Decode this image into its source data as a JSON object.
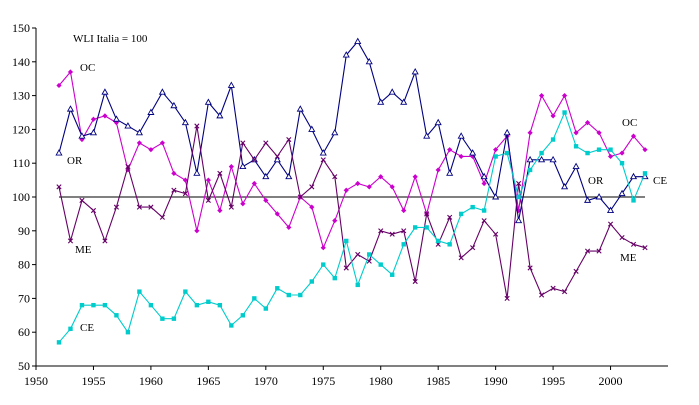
{
  "chart_data": {
    "type": "line",
    "title": "WLI Italia = 100",
    "xlabel": "",
    "ylabel": "",
    "xlim": [
      1950,
      2005
    ],
    "ylim": [
      50,
      150
    ],
    "x_ticks": [
      1950,
      1955,
      1960,
      1965,
      1970,
      1975,
      1980,
      1985,
      1990,
      1995,
      2000
    ],
    "y_ticks": [
      50,
      60,
      70,
      80,
      90,
      100,
      110,
      120,
      130,
      140,
      150
    ],
    "grid": false,
    "reference_line": 100,
    "x": [
      1952,
      1953,
      1954,
      1955,
      1956,
      1957,
      1958,
      1959,
      1960,
      1961,
      1962,
      1963,
      1964,
      1965,
      1966,
      1967,
      1968,
      1969,
      1970,
      1971,
      1972,
      1973,
      1974,
      1975,
      1976,
      1977,
      1978,
      1979,
      1980,
      1981,
      1982,
      1983,
      1984,
      1985,
      1986,
      1987,
      1988,
      1989,
      1990,
      1991,
      1992,
      1993,
      1994,
      1995,
      1996,
      1997,
      1998,
      1999,
      2000,
      2001,
      2002,
      2003
    ],
    "series": [
      {
        "name": "OC",
        "color": "#cc00cc",
        "marker": "diamond",
        "values": [
          133,
          137,
          117,
          123,
          124,
          122,
          108,
          116,
          114,
          116,
          107,
          105,
          90,
          105,
          96,
          109,
          98,
          104,
          99,
          95,
          91,
          100,
          97,
          85,
          93,
          102,
          104,
          103,
          106,
          103,
          96,
          106,
          95,
          108,
          114,
          112,
          112,
          104,
          114,
          118,
          96,
          119,
          130,
          124,
          130,
          119,
          122,
          119,
          112,
          113,
          118,
          114
        ]
      },
      {
        "name": "OR",
        "color": "#000080",
        "marker": "triangle",
        "values": [
          113,
          126,
          118,
          119,
          131,
          123,
          121,
          119,
          125,
          131,
          127,
          122,
          107,
          128,
          124,
          133,
          109,
          111,
          106,
          111,
          106,
          126,
          120,
          113,
          119,
          142,
          146,
          140,
          128,
          131,
          128,
          137,
          118,
          122,
          107,
          118,
          113,
          106,
          100,
          119,
          93,
          111,
          111,
          111,
          103,
          109,
          99,
          100,
          96,
          101,
          106,
          106
        ]
      },
      {
        "name": "ME",
        "color": "#660066",
        "marker": "x",
        "values": [
          103,
          87,
          99,
          96,
          87,
          97,
          109,
          97,
          97,
          94,
          102,
          101,
          121,
          99,
          107,
          97,
          116,
          111,
          116,
          112,
          117,
          100,
          103,
          111,
          106,
          79,
          83,
          81,
          90,
          89,
          90,
          75,
          95,
          86,
          94,
          82,
          85,
          93,
          89,
          70,
          104,
          79,
          71,
          73,
          72,
          78,
          84,
          84,
          92,
          88,
          86,
          85
        ]
      },
      {
        "name": "CE",
        "color": "#00cccc",
        "marker": "square",
        "values": [
          57,
          61,
          68,
          68,
          68,
          65,
          60,
          72,
          68,
          64,
          64,
          72,
          68,
          69,
          68,
          62,
          65,
          70,
          67,
          73,
          71,
          71,
          75,
          80,
          76,
          87,
          74,
          83,
          80,
          77,
          86,
          91,
          91,
          87,
          86,
          95,
          97,
          96,
          112,
          113,
          100,
          108,
          113,
          117,
          125,
          115,
          113,
          114,
          114,
          110,
          99,
          107
        ]
      }
    ],
    "series_label_text": {
      "oc_top": "OC",
      "or_left": "OR",
      "me_left": "ME",
      "ce_left": "CE",
      "oc_right": "OC",
      "or_right": "OR",
      "me_right": "ME",
      "ce_right": "CE"
    }
  }
}
